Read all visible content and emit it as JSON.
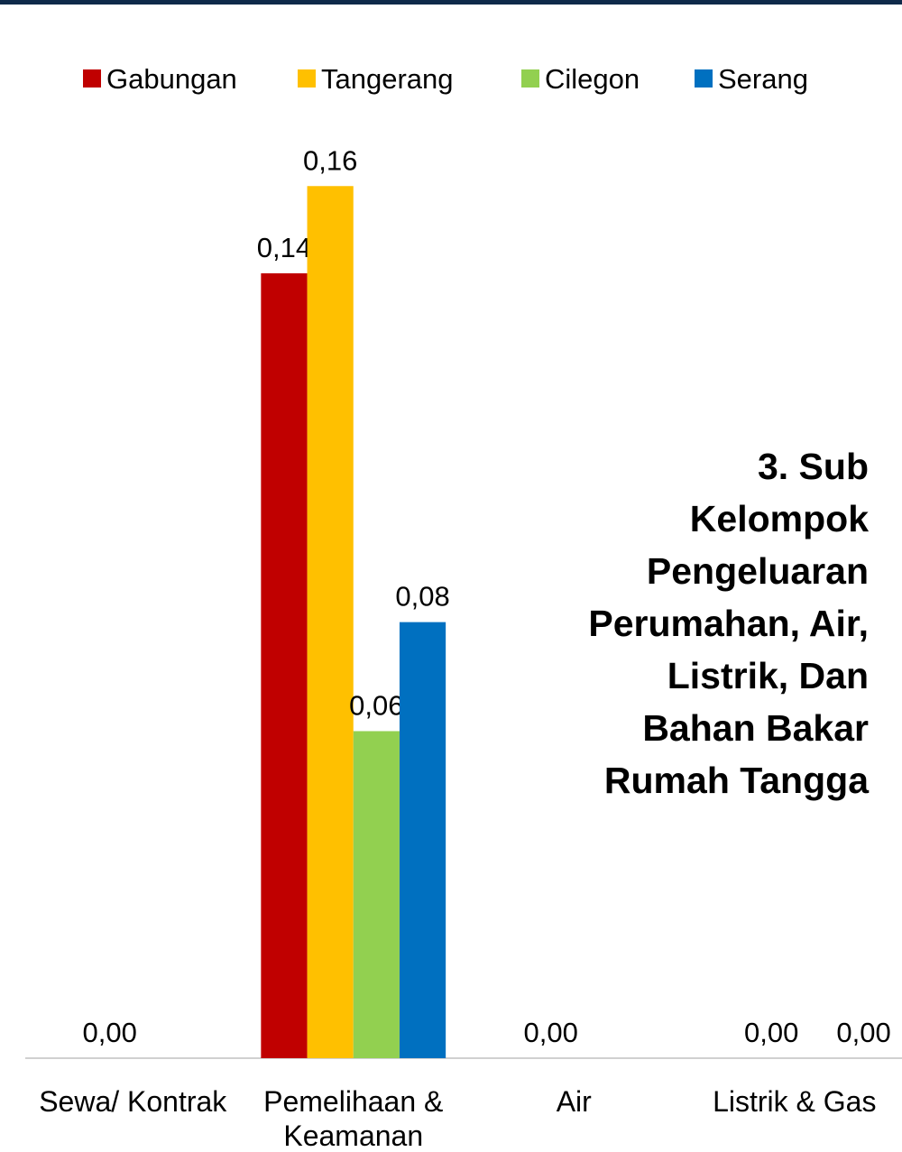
{
  "chart_data": {
    "type": "bar",
    "title": "3. Sub Kelompok Pengeluaran Perumahan, Air, Listrik, Dan Bahan Bakar Rumah Tangga",
    "categories": [
      "Sewa/ Kontrak",
      "Pemelihaan & Keamanan",
      "Air",
      "Listrik & Gas"
    ],
    "series": [
      {
        "name": "Gabungan",
        "color": "#c00000",
        "values": [
          0,
          0.144,
          0,
          0
        ],
        "value_labels": [
          null,
          "0,14",
          null,
          null
        ]
      },
      {
        "name": "Tangerang",
        "color": "#ffc000",
        "values": [
          0,
          0.16,
          0,
          0
        ],
        "value_labels": [
          "0,00",
          "0,16",
          "0,00",
          "0,00"
        ]
      },
      {
        "name": "Cilegon",
        "color": "#92d050",
        "values": [
          0,
          0.06,
          0,
          0
        ],
        "value_labels": [
          null,
          "0,06",
          null,
          null
        ]
      },
      {
        "name": "Serang",
        "color": "#0070c0",
        "values": [
          0,
          0.08,
          0,
          0
        ],
        "value_labels": [
          null,
          "0,08",
          null,
          "0,00"
        ]
      }
    ],
    "ylim": [
      0,
      0.19
    ]
  }
}
